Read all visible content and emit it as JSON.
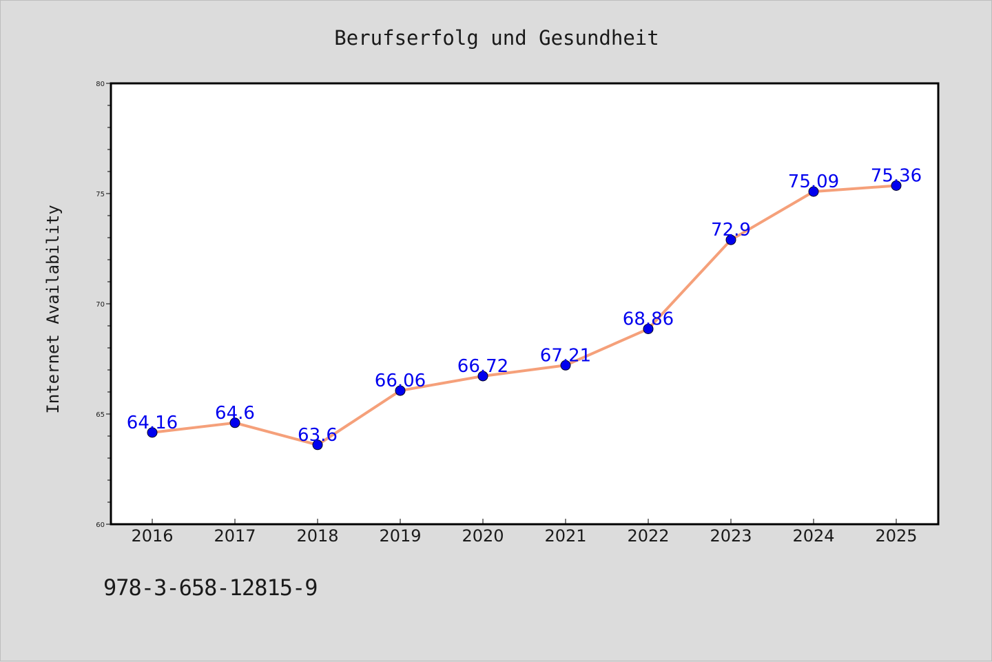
{
  "chart_data": {
    "type": "line",
    "title": "Berufserfolg und Gesundheit",
    "xlabel": "",
    "ylabel": "Internet Availability",
    "categories": [
      "2016",
      "2017",
      "2018",
      "2019",
      "2020",
      "2021",
      "2022",
      "2023",
      "2024",
      "2025"
    ],
    "series": [
      {
        "values": [
          64.16,
          64.6,
          63.6,
          66.06,
          66.72,
          67.21,
          68.86,
          72.9,
          75.09,
          75.36
        ],
        "data_labels": [
          "64.16",
          "64.6",
          "63.6",
          "66.06",
          "66.72",
          "67.21",
          "68.86",
          "72.9",
          "75.09",
          "75.36"
        ],
        "line_color": "#f5a07a",
        "marker_color": "#0000ee",
        "label_color": "#0000ee"
      }
    ],
    "ylim": [
      60,
      80
    ],
    "y_ticks": [
      "60",
      "65",
      "70",
      "75",
      "80"
    ],
    "grid": false,
    "legend": "none"
  },
  "footer_code": "978-3-658-12815-9",
  "colors": {
    "background": "#dcdcdc",
    "plot_background": "#ffffff",
    "axis": "#000000"
  }
}
